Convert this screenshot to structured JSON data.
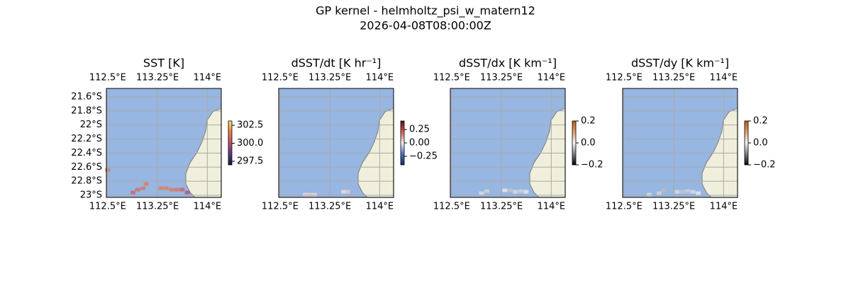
{
  "title": "GP kernel - helmholtz_psi_w_matern12",
  "subtitle": "2026-04-08T08:00:00Z",
  "chart_data": [
    {
      "type": "map",
      "title": "SST [K]",
      "xlim": [
        112.48,
        114.21
      ],
      "ylim": [
        -23.03,
        -21.48
      ],
      "grid": true,
      "xticks": [
        {
          "value": 112.5,
          "label": "112.5°E"
        },
        {
          "value": 113.25,
          "label": "113.25°E"
        },
        {
          "value": 114,
          "label": "114°E"
        }
      ],
      "yticks": [
        {
          "value": -21.6,
          "label": "21.6°S"
        },
        {
          "value": -21.8,
          "label": "21.8°S"
        },
        {
          "value": -22,
          "label": "22°S"
        },
        {
          "value": -22.2,
          "label": "22.2°S"
        },
        {
          "value": -22.4,
          "label": "22.4°S"
        },
        {
          "value": -22.6,
          "label": "22.6°S"
        },
        {
          "value": -22.8,
          "label": "22.8°S"
        },
        {
          "value": -23,
          "label": "23°S"
        }
      ],
      "clim": [
        297.0,
        303.1
      ],
      "cticks": [
        302.5,
        {
          "value": 300,
          "label": "300.0"
        },
        297.5
      ],
      "cmap": [
        "#0d1a3a",
        "#5a3c8c",
        "#c0506a",
        "#e8814a",
        "#f3e36a"
      ],
      "x": [
        112.5,
        112.88,
        112.95,
        113.03,
        113.08,
        113.3,
        113.38,
        113.46,
        113.54,
        113.62,
        113.7
      ],
      "y": [
        -22.64,
        -22.96,
        -22.92,
        -22.9,
        -22.84,
        -22.9,
        -22.9,
        -22.92,
        -22.92,
        -22.92,
        -22.96
      ],
      "values": [
        301.2,
        300.6,
        300.9,
        301.1,
        301.3,
        301.4,
        301.4,
        301.2,
        301.0,
        300.5,
        299.8
      ]
    },
    {
      "type": "map",
      "title": "dSST/dt [K hr⁻¹]",
      "xlim": [
        112.48,
        114.21
      ],
      "ylim": [
        -23.03,
        -21.48
      ],
      "grid": true,
      "xticks": [
        {
          "value": 112.5,
          "label": "112.5°E"
        },
        {
          "value": 113.25,
          "label": "113.25°E"
        },
        {
          "value": 114,
          "label": "114°E"
        }
      ],
      "clim": [
        -0.41,
        0.41
      ],
      "cticks": [
        0.25,
        {
          "value": 0,
          "label": "0.00"
        },
        {
          "value": -0.25,
          "label": "−0.25"
        }
      ],
      "cmap": [
        "#1a2a5e",
        "#4a78c0",
        "#f4f0f0",
        "#d06050",
        "#5a1020"
      ],
      "x": [
        112.88,
        112.95,
        113.02,
        113.46,
        113.52
      ],
      "y": [
        -22.99,
        -22.99,
        -22.99,
        -22.95,
        -22.95
      ],
      "values": [
        0.03,
        0.04,
        0.03,
        0.02,
        0.05
      ]
    },
    {
      "type": "map",
      "title": "dSST/dx [K km⁻¹]",
      "xlim": [
        112.48,
        114.21
      ],
      "ylim": [
        -23.03,
        -21.48
      ],
      "grid": true,
      "xticks": [
        {
          "value": 112.5,
          "label": "112.5°E"
        },
        {
          "value": 113.25,
          "label": "113.25°E"
        },
        {
          "value": 114,
          "label": "114°E"
        }
      ],
      "clim": [
        -0.2,
        0.2
      ],
      "cticks": [
        0.2,
        {
          "value": 0,
          "label": "0.0"
        },
        {
          "value": -0.2,
          "label": "−0.2"
        }
      ],
      "cmap": [
        "#050505",
        "#808080",
        "#f8f8f8",
        "#e0a070",
        "#b06010"
      ],
      "x": [
        112.95,
        113.03,
        113.3,
        113.38,
        113.46,
        113.54,
        113.62
      ],
      "y": [
        -22.97,
        -22.94,
        -22.93,
        -22.93,
        -22.95,
        -22.94,
        -22.95
      ],
      "values": [
        -0.02,
        -0.03,
        -0.01,
        -0.04,
        -0.02,
        -0.03,
        -0.01
      ]
    },
    {
      "type": "map",
      "title": "dSST/dy [K km⁻¹]",
      "xlim": [
        112.48,
        114.21
      ],
      "ylim": [
        -23.03,
        -21.48
      ],
      "grid": true,
      "xticks": [
        {
          "value": 112.5,
          "label": "112.5°E"
        },
        {
          "value": 113.25,
          "label": "113.25°E"
        },
        {
          "value": 114,
          "label": "114°E"
        }
      ],
      "clim": [
        -0.2,
        0.2
      ],
      "cticks": [
        0.2,
        {
          "value": 0,
          "label": "0.0"
        },
        {
          "value": -0.2,
          "label": "−0.2"
        }
      ],
      "cmap": [
        "#050505",
        "#808080",
        "#f8f8f8",
        "#e0a070",
        "#b06010"
      ],
      "x": [
        112.88,
        113.03,
        113.1,
        113.3,
        113.38,
        113.46,
        113.54,
        113.62
      ],
      "y": [
        -22.99,
        -22.97,
        -22.93,
        -22.95,
        -22.95,
        -22.94,
        -22.95,
        -22.97
      ],
      "values": [
        -0.02,
        -0.03,
        -0.05,
        -0.02,
        -0.04,
        -0.03,
        -0.02,
        -0.01
      ]
    }
  ]
}
